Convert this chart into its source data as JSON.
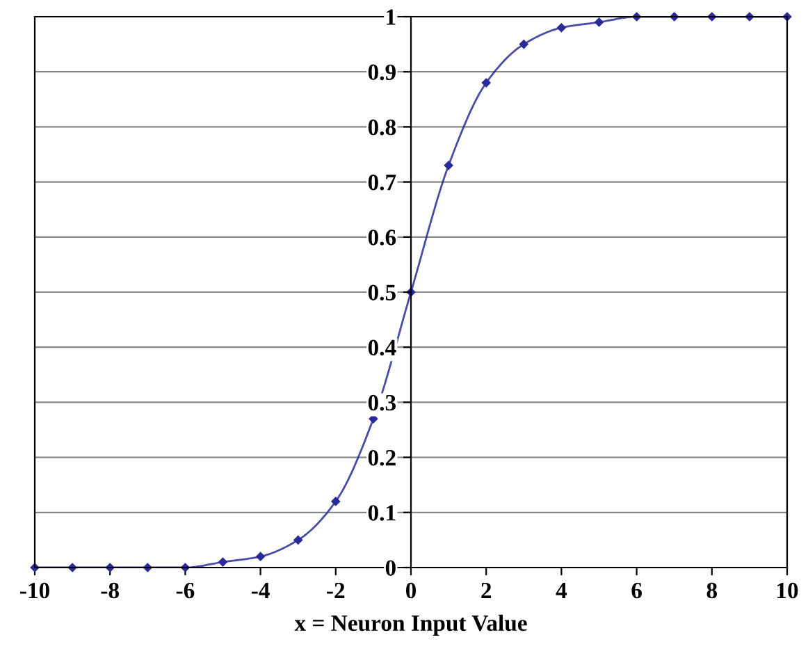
{
  "chart_data": {
    "type": "line",
    "xlabel": "x = Neuron Input Value",
    "x": [
      -10,
      -9,
      -8,
      -7,
      -6,
      -5,
      -4,
      -3,
      -2,
      -1,
      0,
      1,
      2,
      3,
      4,
      5,
      6,
      7,
      8,
      9,
      10
    ],
    "series": [
      {
        "color": "#2a2a9a",
        "values": [
          0,
          0,
          0,
          0,
          0,
          0.01,
          0.02,
          0.05,
          0.12,
          0.27,
          0.5,
          0.73,
          0.88,
          0.95,
          0.98,
          0.99,
          1,
          1,
          1,
          1,
          1
        ]
      }
    ],
    "xlim": [
      -10,
      10
    ],
    "xticks": [
      -10,
      -8,
      -6,
      -4,
      -2,
      0,
      2,
      4,
      6,
      8,
      10
    ],
    "ylim": [
      0,
      1
    ],
    "yticks": [
      0,
      0.1,
      0.2,
      0.3,
      0.4,
      0.5,
      0.6,
      0.7,
      0.8,
      0.9,
      1
    ],
    "grid": "y",
    "marker": "diamond",
    "line_style": "solid"
  }
}
